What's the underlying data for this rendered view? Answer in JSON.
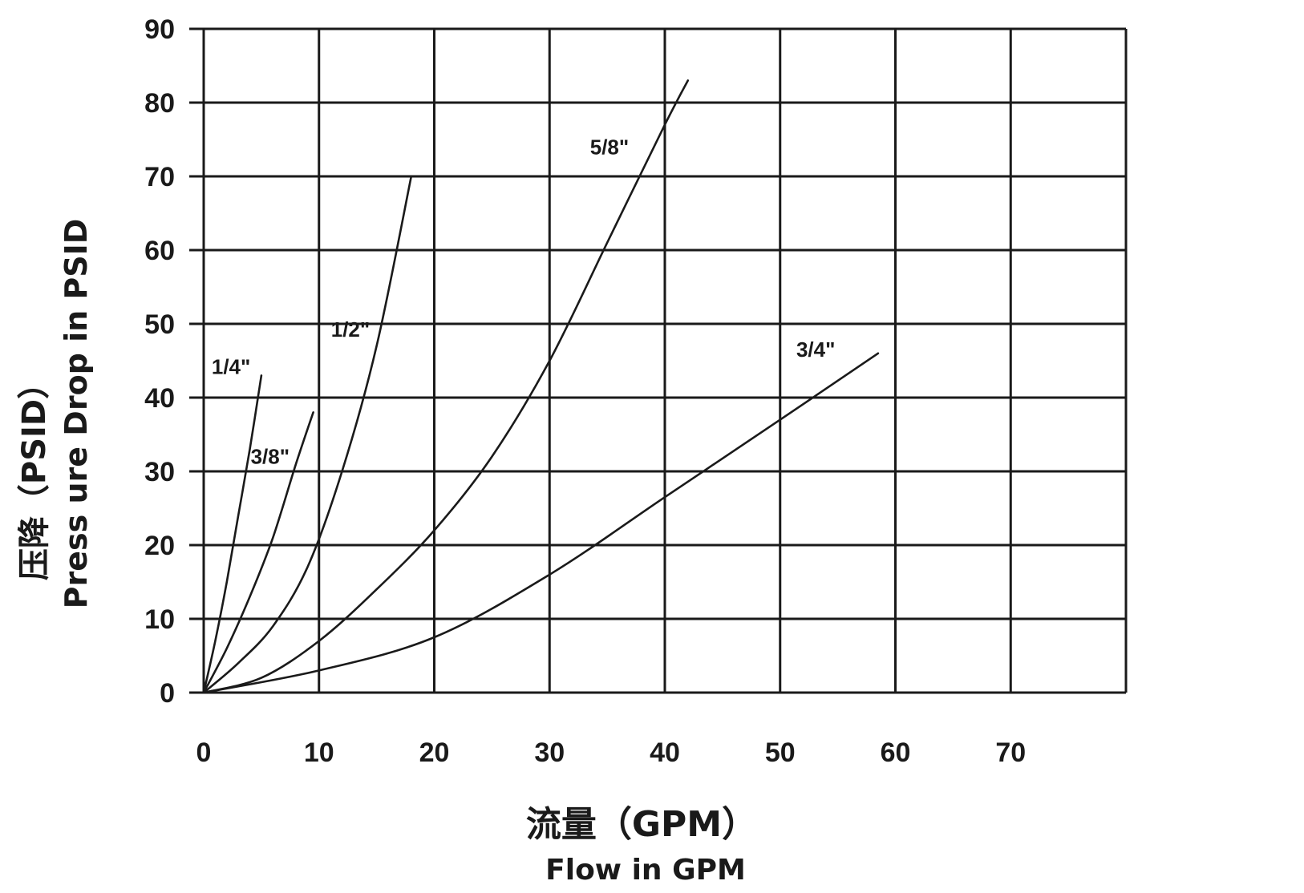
{
  "chart_data": {
    "type": "line",
    "xlabel_cn": "流量（GPM）",
    "xlabel_en": "Flow in GPM",
    "ylabel_cn": "压降（PSID）",
    "ylabel_en": "Press ure Drop in PSID",
    "xlim": [
      0,
      80
    ],
    "ylim": [
      0,
      90
    ],
    "xticks": [
      "0",
      "10",
      "20",
      "30",
      "40",
      "50",
      "60",
      "70"
    ],
    "yticks": [
      "0",
      "10",
      "20",
      "30",
      "40",
      "50",
      "60",
      "70",
      "80",
      "90"
    ],
    "grid": true,
    "series": [
      {
        "name": "1/4\"",
        "x": [
          0,
          1,
          2,
          3,
          4,
          5
        ],
        "y": [
          0,
          7,
          15,
          24,
          33,
          43
        ]
      },
      {
        "name": "3/8\"",
        "x": [
          0,
          2,
          4,
          6,
          8,
          9.5
        ],
        "y": [
          0,
          6,
          13,
          21,
          31,
          38
        ]
      },
      {
        "name": "1/2\"",
        "x": [
          0,
          3,
          6,
          9,
          12,
          15,
          18
        ],
        "y": [
          0,
          4,
          9,
          17,
          30,
          47,
          70
        ]
      },
      {
        "name": "5/8\"",
        "x": [
          0,
          5,
          10,
          15,
          20,
          25,
          30,
          35,
          40,
          42
        ],
        "y": [
          0,
          2,
          7,
          14,
          22,
          32,
          45,
          61,
          77,
          83
        ]
      },
      {
        "name": "3/4\"",
        "x": [
          0,
          10,
          20,
          30,
          40,
          50,
          58.5
        ],
        "y": [
          0,
          3,
          7.5,
          16,
          26.5,
          37,
          46
        ]
      }
    ]
  }
}
